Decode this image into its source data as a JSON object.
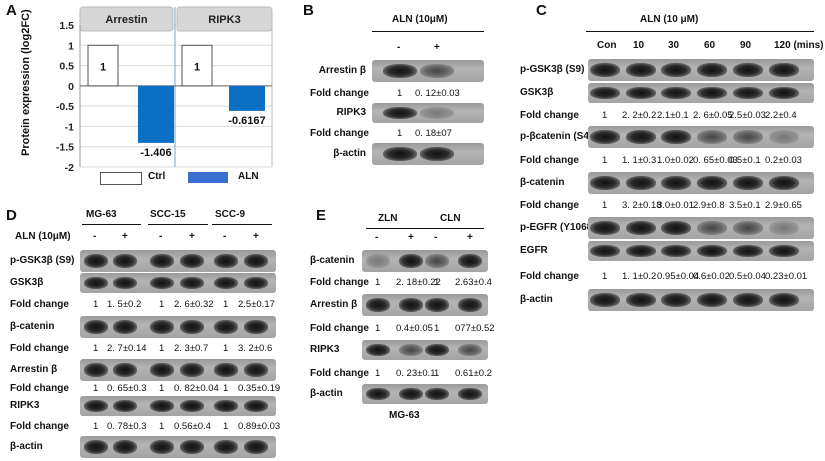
{
  "panels": {
    "A": {
      "letter": "A",
      "ylabel": "Protein expression (log2FC)",
      "facets": [
        "Arrestin",
        "RIPK3"
      ],
      "legend": [
        "Ctrl",
        "ALN"
      ],
      "ctrl_labels": [
        "1",
        "1"
      ],
      "aln_labels": [
        "-1.406",
        "-0.6167"
      ]
    },
    "B": {
      "letter": "B",
      "treatment": "ALN (10μM)",
      "lanes": [
        "-",
        "+"
      ],
      "rows": [
        {
          "label": "Arrestin β"
        },
        {
          "label": "Fold change",
          "values": [
            "1",
            "0. 12±0.03"
          ]
        },
        {
          "label": "RIPK3"
        },
        {
          "label": "Fold change",
          "values": [
            "1",
            "0. 18±07"
          ]
        },
        {
          "label": "β-actin"
        }
      ]
    },
    "C": {
      "letter": "C",
      "treatment": "ALN (10 μM)",
      "lanes": [
        "Con",
        "10",
        "30",
        "60",
        "90",
        "120 (mins)"
      ],
      "rows": [
        {
          "label": "p-GSK3β (S9)"
        },
        {
          "label": "GSK3β"
        },
        {
          "label": "Fold change",
          "values": [
            "1",
            "2. 2±0.2",
            "2.1±0.1",
            "2. 6±0.05",
            "2.5±0.03",
            "2.2±0.4"
          ]
        },
        {
          "label": "p-βcatenin (S45)"
        },
        {
          "label": "Fold change",
          "values": [
            "1",
            "1. 1±0.3",
            "1.0±0.02",
            "0. 65±0.03",
            "0.5±0.1",
            "0.2±0.03"
          ]
        },
        {
          "label": "β-catenin"
        },
        {
          "label": "Fold change",
          "values": [
            "1",
            "3. 2±0.18",
            "3.0±0.01",
            "2.9±0.8",
            "3.5±0.1",
            "2.9±0.65"
          ]
        },
        {
          "label": "p-EGFR (Y1068)"
        },
        {
          "label": "EGFR"
        },
        {
          "label": "Fold change",
          "values": [
            "1",
            "1. 1±0.2",
            "0.95±0.04",
            "0.6±0.02",
            "0.5±0.04",
            "0.23±0.01"
          ]
        },
        {
          "label": "β-actin"
        }
      ]
    },
    "D": {
      "letter": "D",
      "cell_lines": [
        "MG-63",
        "SCC-15",
        "SCC-9"
      ],
      "treatment": "ALN (10μM)",
      "lanes": [
        "-",
        "+",
        "-",
        "+",
        "-",
        "+"
      ],
      "rows": [
        {
          "label": "p-GSK3β (S9)"
        },
        {
          "label": "GSK3β"
        },
        {
          "label": "Fold change",
          "values": [
            "1",
            "1. 5±0.2",
            "1",
            "2. 6±0.32",
            "1",
            "2.5±0.17"
          ]
        },
        {
          "label": "β-catenin"
        },
        {
          "label": "Fold change",
          "values": [
            "1",
            "2. 7±0.14",
            "1",
            "2. 3±0.7",
            "1",
            "3. 2±0.6"
          ]
        },
        {
          "label": "Arrestin β"
        },
        {
          "label": "Fold change",
          "values": [
            "1",
            "0. 65±0.3",
            "1",
            "0. 82±0.04",
            "1",
            "0.35±0.19"
          ]
        },
        {
          "label": "RIPK3"
        },
        {
          "label": "Fold change",
          "values": [
            "1",
            "0. 78±0.3",
            "1",
            "0.56±0.4",
            "1",
            "0.89±0.03"
          ]
        },
        {
          "label": "β-actin"
        }
      ]
    },
    "E": {
      "letter": "E",
      "groups": [
        "ZLN",
        "CLN"
      ],
      "lanes": [
        "-",
        "+",
        "-",
        "+"
      ],
      "rows": [
        {
          "label": "β-catenin"
        },
        {
          "label": "Fold change",
          "values": [
            "1",
            "2. 18±0.22",
            "1",
            "2.63±0.4"
          ]
        },
        {
          "label": "Arrestin β"
        },
        {
          "label": "Fold change",
          "values": [
            "1",
            "0.4±0.05",
            "1",
            "077±0.52"
          ]
        },
        {
          "label": "RIPK3"
        },
        {
          "label": "Fold change",
          "values": [
            "1",
            "0. 23±0.1",
            "1",
            "0.61±0.2"
          ]
        },
        {
          "label": "β-actin"
        }
      ],
      "cell_line": "MG-63"
    }
  },
  "chart_data": {
    "type": "bar",
    "title": "",
    "facets": [
      "Arrestin",
      "RIPK3"
    ],
    "categories": [
      "Arrestin",
      "RIPK3"
    ],
    "series": [
      {
        "name": "Ctrl",
        "values": [
          1,
          1
        ],
        "color": "#ffffff"
      },
      {
        "name": "ALN",
        "values": [
          -1.406,
          -0.6167
        ],
        "color": "#0b6fc4"
      }
    ],
    "ylabel": "Protein expression (log2FC)",
    "ylim": [
      -2,
      1.5
    ],
    "yticks": [
      "1.5",
      "1",
      "0.5",
      "0",
      "-0.5",
      "-1",
      "-1.5",
      "-2"
    ],
    "grid": true,
    "legend": "bottom"
  },
  "colors": {
    "aln_bar": "#0b6fc4",
    "aln_legend": "#3a6fd0",
    "ctrl_bar": "#ffffff",
    "grid": "#d9d9d9",
    "facet_header": "#d6d6d6"
  }
}
